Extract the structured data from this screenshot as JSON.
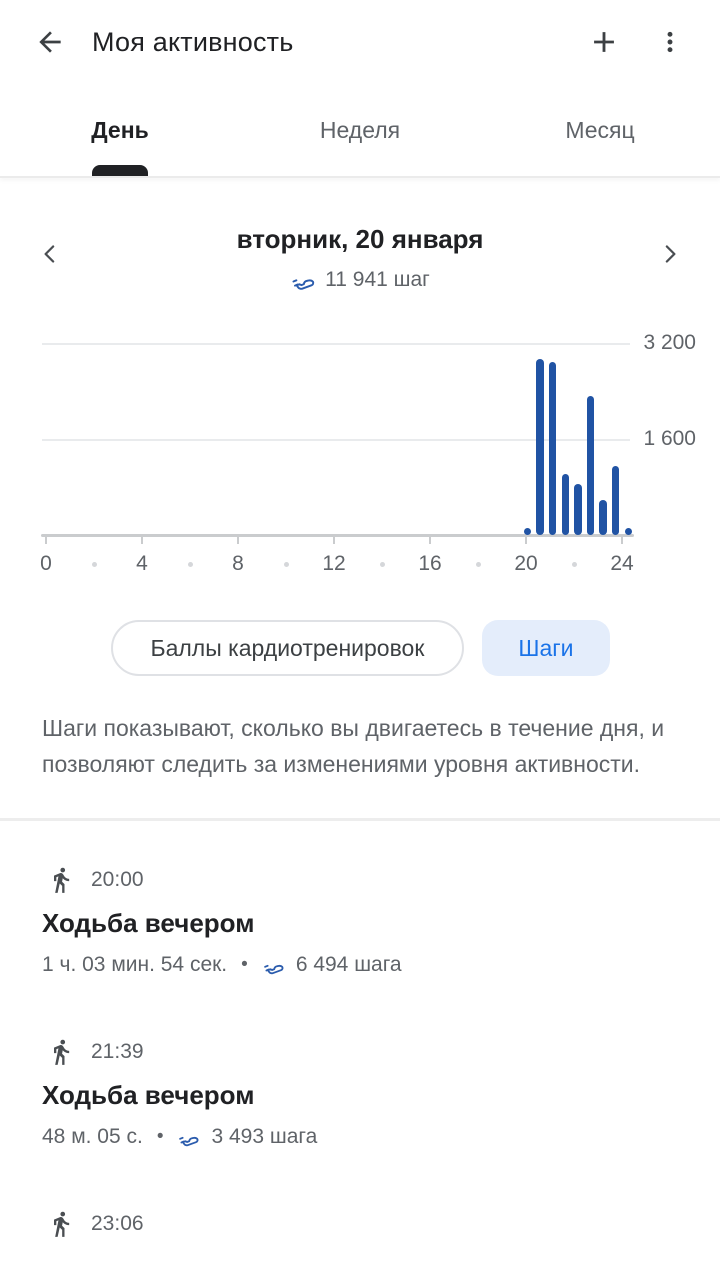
{
  "header": {
    "title": "Моя активность",
    "back_icon": "arrow-back",
    "add_icon": "plus",
    "menu_icon": "three-dot-menu"
  },
  "tabs": [
    {
      "label": "День",
      "active": true
    },
    {
      "label": "Неделя",
      "active": false
    },
    {
      "label": "Месяц",
      "active": false
    }
  ],
  "date_nav": {
    "date": "вторник, 20 января",
    "steps_summary": "11 941 шаг",
    "prev_icon": "chevron-left",
    "next_icon": "chevron-right"
  },
  "chart_data": {
    "type": "bar",
    "title": "",
    "xlabel": "",
    "ylabel": "",
    "xlim": [
      0,
      24
    ],
    "ylim": [
      0,
      3200
    ],
    "grid": "horizontal",
    "x_tick_labels": [
      0,
      4,
      8,
      12,
      16,
      20,
      24
    ],
    "x_mid_dots": [
      2,
      6,
      10,
      14,
      18,
      22
    ],
    "y_gridlines": [
      {
        "value": 1600,
        "label": "1 600"
      },
      {
        "value": 3200,
        "label": "3 200"
      }
    ],
    "series": [
      {
        "name": "Шаги",
        "x_hours": [
          19.5,
          20,
          20.5,
          21,
          21.5,
          22,
          22.5,
          23,
          23.5
        ],
        "values": [
          60,
          2950,
          2900,
          1030,
          860,
          2330,
          590,
          1150,
          71
        ]
      }
    ],
    "total_label": "11 941 шаг"
  },
  "chips": [
    {
      "label": "Баллы кардиотренировок",
      "selected": false
    },
    {
      "label": "Шаги",
      "selected": true
    }
  ],
  "description": "Шаги показывают, сколько вы двигаетесь в течение дня, и позволяют следить за изменениями уровня активности.",
  "activities": [
    {
      "time": "20:00",
      "title": "Ходьба вечером",
      "duration": "1 ч. 03 мин. 54 сек.",
      "separator": "•",
      "steps": "6 494 шага"
    },
    {
      "time": "21:39",
      "title": "Ходьба вечером",
      "duration": "48 м. 05 с.",
      "separator": "•",
      "steps": "3 493 шага"
    },
    {
      "time": "23:06",
      "title": "",
      "duration": "",
      "separator": "",
      "steps": ""
    }
  ],
  "colors": {
    "bar_blue": "#2053a4",
    "steps_icon_blue": "#2b5cad",
    "accent_blue": "#1a73e8",
    "chip_selected_bg": "#e4edfb",
    "text_primary": "#202124",
    "text_secondary": "#5f6368",
    "gridline": "#e9ebed",
    "axis": "#caccce"
  }
}
